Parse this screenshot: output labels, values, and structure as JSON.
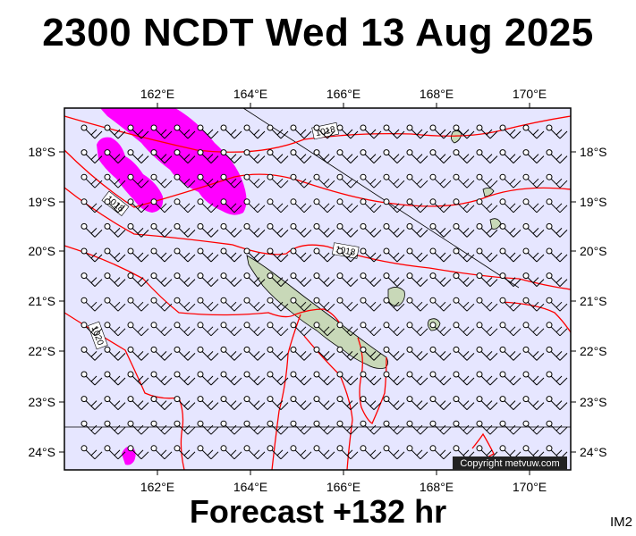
{
  "header": {
    "title": "2300 NCDT Wed 13 Aug 2025"
  },
  "footer": {
    "forecast": "Forecast +132 hr",
    "badge": "IM2"
  },
  "map": {
    "longitude_ticks": [
      "162°E",
      "164°E",
      "166°E",
      "168°E",
      "170°E"
    ],
    "latitude_ticks": [
      "18°S",
      "19°S",
      "20°S",
      "21°S",
      "22°S",
      "23°S",
      "24°S"
    ],
    "isobar_labels": [
      "1018",
      "1018",
      "1018",
      "1020"
    ],
    "copyright": "Copyright metvuw.com",
    "colors": {
      "background": "#e6e6ff",
      "isobar": "#ff0000",
      "precip": "#ff00ff",
      "land": "#c8d8b8",
      "frame": "#000000"
    },
    "icons": [
      "wind-barb-icon"
    ]
  }
}
